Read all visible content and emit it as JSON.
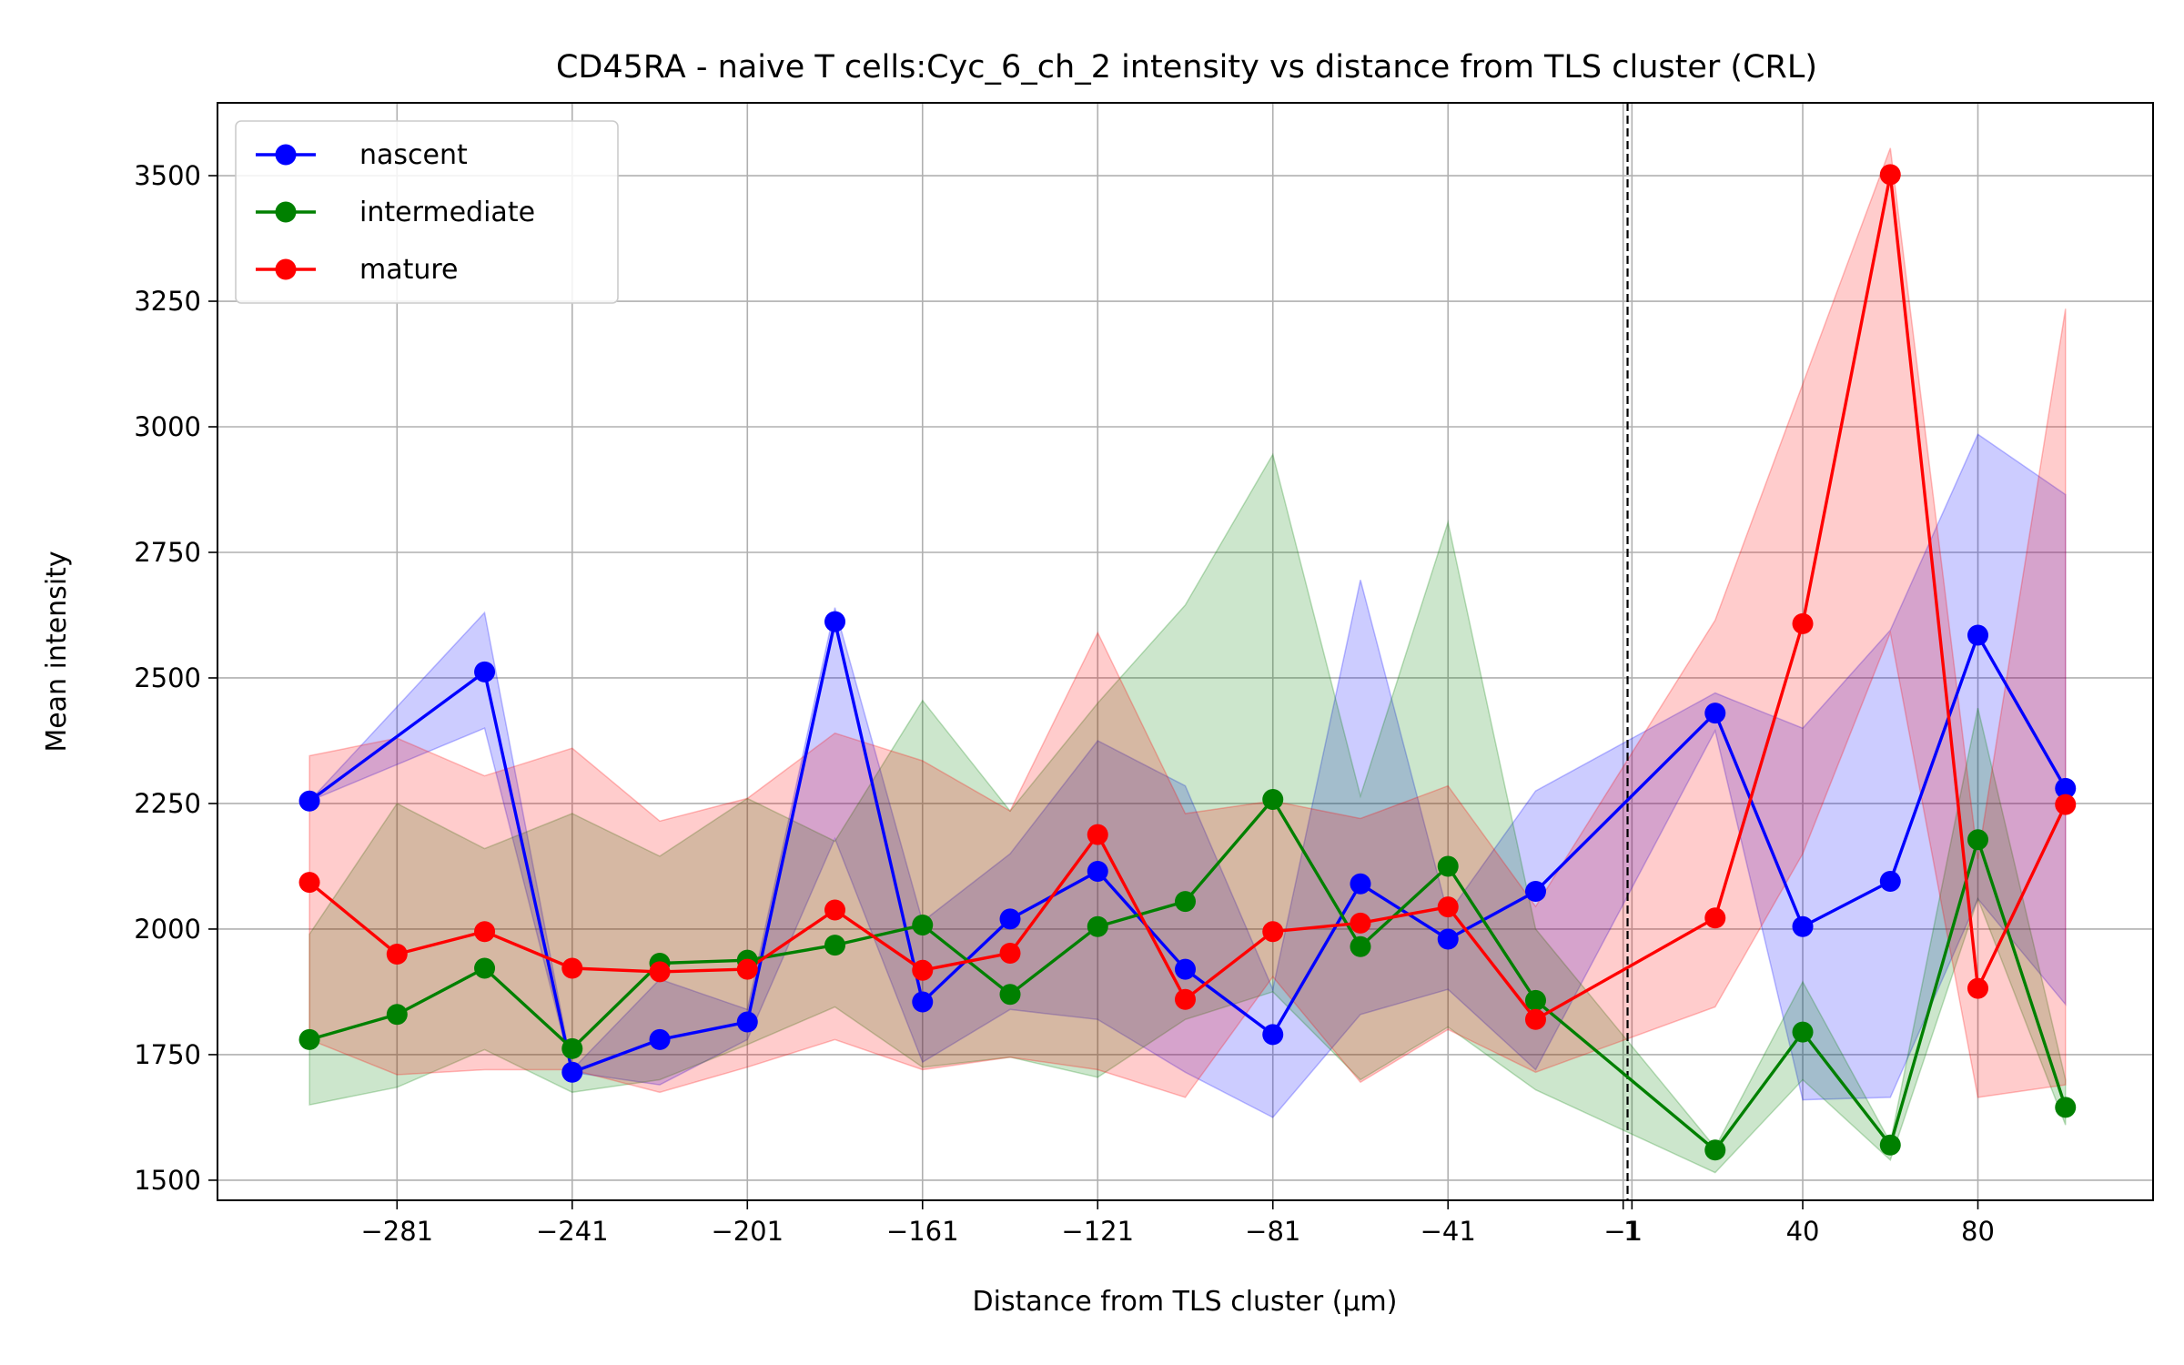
{
  "chart_data": {
    "type": "line",
    "title": "CD45RA - naive T cells:Cyc_6_ch_2 intensity vs distance from TLS cluster (CRL)",
    "xlabel": "Distance from TLS cluster (μm)",
    "ylabel": "Mean intensity",
    "xlim": [
      -322,
      120
    ],
    "ylim": [
      1460,
      3645
    ],
    "x_ticks": [
      -281,
      -241,
      -201,
      -161,
      -121,
      -81,
      -41,
      -1,
      1,
      40,
      80
    ],
    "x_tick_labels": [
      "−281",
      "−241",
      "−201",
      "−161",
      "−121",
      "−81",
      "−41",
      "−1",
      "1",
      "40",
      "80"
    ],
    "y_ticks": [
      1500,
      1750,
      2000,
      2250,
      2500,
      2750,
      3000,
      3250,
      3500
    ],
    "grid": true,
    "legend_position": "upper-left",
    "vline": {
      "x": 0,
      "style": "dashed",
      "color": "#000000"
    },
    "x": [
      -301,
      -281,
      -261,
      -241,
      -221,
      -201,
      -181,
      -161,
      -141,
      -121,
      -101,
      -81,
      -61,
      -41,
      -21,
      20,
      40,
      60,
      80,
      100
    ],
    "series": [
      {
        "name": "nascent",
        "color": "#0000ff",
        "values": [
          2255,
          null,
          2512,
          1715,
          1780,
          1815,
          2612,
          1855,
          2020,
          2115,
          1920,
          1790,
          2090,
          1980,
          2075,
          2430,
          2005,
          2095,
          2585,
          2280
        ],
        "lower": [
          2255,
          null,
          2400,
          1715,
          1690,
          1780,
          2180,
          1735,
          1840,
          1820,
          1715,
          1625,
          1830,
          1880,
          1720,
          2395,
          1660,
          1665,
          2060,
          1850
        ],
        "upper": [
          2255,
          null,
          2630,
          1720,
          1900,
          1840,
          2640,
          2015,
          2150,
          2375,
          2285,
          1880,
          2695,
          2030,
          2275,
          2470,
          2400,
          2595,
          2985,
          2865
        ]
      },
      {
        "name": "intermediate",
        "color": "#008000",
        "values": [
          1780,
          1830,
          1922,
          1762,
          1932,
          1938,
          1968,
          2008,
          1870,
          2005,
          2055,
          2258,
          1965,
          2125,
          1858,
          1560,
          1795,
          1570,
          2178,
          1645
        ],
        "lower": [
          1650,
          1685,
          1760,
          1675,
          1700,
          1770,
          1845,
          1725,
          1745,
          1705,
          1820,
          1875,
          1700,
          1805,
          1680,
          1515,
          1700,
          1540,
          2060,
          1610
        ],
        "upper": [
          1990,
          2250,
          2160,
          2230,
          2145,
          2260,
          2175,
          2455,
          2235,
          2450,
          2645,
          2945,
          2265,
          2810,
          2000,
          1565,
          1895,
          1575,
          2440,
          1700
        ]
      },
      {
        "name": "mature",
        "color": "#ff0000",
        "values": [
          2093,
          1950,
          1995,
          1922,
          1915,
          1920,
          2038,
          1918,
          1952,
          2188,
          1860,
          1995,
          2012,
          2044,
          1820,
          2022,
          2608,
          3502,
          1882,
          2248
        ],
        "lower": [
          1780,
          1710,
          1720,
          1720,
          1675,
          1725,
          1780,
          1720,
          1745,
          1720,
          1665,
          1905,
          1695,
          1800,
          1715,
          1845,
          2150,
          2590,
          1665,
          1690
        ],
        "upper": [
          2345,
          2380,
          2305,
          2360,
          2215,
          2260,
          2390,
          2335,
          2235,
          2590,
          2230,
          2255,
          2220,
          2285,
          2045,
          2615,
          3085,
          3555,
          2140,
          3235
        ]
      }
    ]
  }
}
